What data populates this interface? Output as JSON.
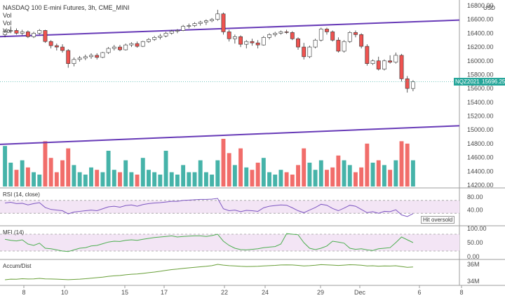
{
  "header": {
    "title": "NASDAQ 100 E-mini Futures, 3h, CME_MINI",
    "vol_lines": [
      "Vol",
      "Vol",
      "Vol"
    ]
  },
  "price_axis": {
    "currency": "USD",
    "ticks": [
      "16800.00",
      "16600.00",
      "16400.00",
      "16200.00",
      "16000.00",
      "15800.00",
      "15600.00",
      "15400.00",
      "15200.00",
      "15000.00",
      "14800.00",
      "14600.00",
      "14400.00",
      "14200.00"
    ]
  },
  "symbol_tag": "NQZ2021",
  "last_price": "15696.25",
  "rsi": {
    "label": "RSI (14, close)",
    "ticks": [
      "80.00",
      "40.00"
    ],
    "alert": "Hit oversold"
  },
  "mfi": {
    "label": "MFI (14)",
    "ticks": [
      "100.00",
      "50.00",
      "0.00"
    ]
  },
  "accum": {
    "label": "Accum/Dist",
    "ticks": [
      "36M",
      "34M"
    ]
  },
  "time_axis": [
    "8",
    "10",
    "15",
    "17",
    "22",
    "24",
    "29",
    "Dec",
    "6",
    "8"
  ],
  "colors": {
    "up": "#26a69a",
    "down": "#ef5350",
    "trendline": "#673ab7",
    "rsi_line": "#7e57c2",
    "mfi_line": "#4caf50",
    "accum_line": "#689f38",
    "band_fill": "#f3e5f5",
    "price_tag_bg": "#26a69a"
  },
  "chart_data": {
    "type": "candlestick",
    "title": "NASDAQ 100 E-mini Futures, 3h, CME_MINI",
    "y_range": [
      14200,
      16800
    ],
    "candles": [
      [
        16380,
        16460,
        16340,
        16430
      ],
      [
        16430,
        16500,
        16400,
        16440
      ],
      [
        16440,
        16470,
        16380,
        16400
      ],
      [
        16400,
        16450,
        16370,
        16420
      ],
      [
        16420,
        16440,
        16330,
        16350
      ],
      [
        16350,
        16420,
        16330,
        16400
      ],
      [
        16400,
        16460,
        16380,
        16440
      ],
      [
        16440,
        16450,
        16260,
        16280
      ],
      [
        16280,
        16300,
        16180,
        16220
      ],
      [
        16220,
        16250,
        16150,
        16200
      ],
      [
        16200,
        16240,
        16120,
        16150
      ],
      [
        16150,
        16170,
        15900,
        15960
      ],
      [
        15960,
        16050,
        15920,
        16020
      ],
      [
        16020,
        16070,
        15990,
        16040
      ],
      [
        16040,
        16090,
        16010,
        16060
      ],
      [
        16060,
        16110,
        16030,
        16080
      ],
      [
        16080,
        16110,
        16020,
        16050
      ],
      [
        16050,
        16130,
        16040,
        16120
      ],
      [
        16120,
        16200,
        16100,
        16180
      ],
      [
        16180,
        16230,
        16150,
        16200
      ],
      [
        16200,
        16230,
        16140,
        16160
      ],
      [
        16160,
        16250,
        16150,
        16230
      ],
      [
        16230,
        16270,
        16200,
        16250
      ],
      [
        16250,
        16280,
        16190,
        16210
      ],
      [
        16210,
        16290,
        16200,
        16280
      ],
      [
        16280,
        16330,
        16260,
        16310
      ],
      [
        16310,
        16360,
        16290,
        16340
      ],
      [
        16340,
        16390,
        16310,
        16360
      ],
      [
        16360,
        16420,
        16340,
        16400
      ],
      [
        16400,
        16450,
        16380,
        16430
      ],
      [
        16430,
        16460,
        16400,
        16440
      ],
      [
        16440,
        16520,
        16430,
        16500
      ],
      [
        16500,
        16540,
        16470,
        16510
      ],
      [
        16510,
        16560,
        16490,
        16540
      ],
      [
        16540,
        16580,
        16510,
        16560
      ],
      [
        16560,
        16600,
        16520,
        16580
      ],
      [
        16580,
        16620,
        16560,
        16600
      ],
      [
        16600,
        16740,
        16580,
        16680
      ],
      [
        16680,
        16700,
        16380,
        16420
      ],
      [
        16420,
        16450,
        16280,
        16320
      ],
      [
        16320,
        16380,
        16250,
        16350
      ],
      [
        16350,
        16370,
        16200,
        16240
      ],
      [
        16240,
        16300,
        16180,
        16280
      ],
      [
        16280,
        16320,
        16220,
        16260
      ],
      [
        16260,
        16300,
        16180,
        16230
      ],
      [
        16230,
        16360,
        16220,
        16340
      ],
      [
        16340,
        16400,
        16310,
        16380
      ],
      [
        16380,
        16420,
        16350,
        16400
      ],
      [
        16400,
        16440,
        16380,
        16420
      ],
      [
        16420,
        16450,
        16390,
        16410
      ],
      [
        16410,
        16430,
        16300,
        16320
      ],
      [
        16320,
        16340,
        16160,
        16200
      ],
      [
        16200,
        16260,
        16020,
        16060
      ],
      [
        16060,
        16220,
        16040,
        16200
      ],
      [
        16200,
        16320,
        16180,
        16300
      ],
      [
        16300,
        16480,
        16280,
        16460
      ],
      [
        16460,
        16480,
        16380,
        16420
      ],
      [
        16420,
        16440,
        16280,
        16300
      ],
      [
        16300,
        16340,
        16120,
        16140
      ],
      [
        16140,
        16300,
        16120,
        16280
      ],
      [
        16280,
        16430,
        16260,
        16410
      ],
      [
        16410,
        16440,
        16340,
        16380
      ],
      [
        16380,
        16400,
        16180,
        16210
      ],
      [
        16210,
        16240,
        15930,
        15960
      ],
      [
        15960,
        16020,
        15940,
        16000
      ],
      [
        16000,
        16060,
        15860,
        15880
      ],
      [
        15880,
        16020,
        15860,
        16000
      ],
      [
        16000,
        16080,
        15960,
        15980
      ],
      [
        15980,
        16120,
        15960,
        16080
      ],
      [
        16080,
        16100,
        15700,
        15740
      ],
      [
        15740,
        15780,
        15540,
        15600
      ],
      [
        15600,
        15720,
        15560,
        15696
      ]
    ],
    "volume_relative": [
      0.85,
      0.5,
      0.35,
      0.55,
      0.4,
      0.3,
      0.25,
      0.95,
      0.6,
      0.3,
      0.55,
      0.8,
      0.45,
      0.3,
      0.25,
      0.4,
      0.35,
      0.3,
      0.75,
      0.35,
      0.3,
      0.55,
      0.3,
      0.25,
      0.6,
      0.35,
      0.3,
      0.25,
      0.75,
      0.3,
      0.25,
      0.45,
      0.3,
      0.3,
      0.55,
      0.3,
      0.25,
      0.55,
      1.0,
      0.7,
      0.45,
      0.8,
      0.4,
      0.35,
      0.5,
      0.6,
      0.3,
      0.25,
      0.35,
      0.3,
      0.25,
      0.45,
      0.8,
      0.5,
      0.35,
      0.55,
      0.35,
      0.4,
      0.65,
      0.55,
      0.45,
      0.3,
      0.4,
      0.9,
      0.5,
      0.55,
      0.45,
      0.35,
      0.55,
      0.95,
      0.9,
      0.55
    ],
    "trendlines": [
      {
        "from": [
          0,
          16350
        ],
        "to": [
          72,
          16590
        ]
      },
      {
        "from": [
          0,
          14790
        ],
        "to": [
          72,
          15060
        ]
      }
    ],
    "rsi_range": [
      0,
      100
    ],
    "rsi_values": [
      62,
      64,
      60,
      61,
      56,
      60,
      63,
      48,
      42,
      40,
      38,
      28,
      34,
      36,
      38,
      40,
      38,
      44,
      50,
      52,
      49,
      54,
      56,
      52,
      57,
      60,
      62,
      63,
      65,
      67,
      67,
      70,
      71,
      72,
      73,
      73,
      74,
      76,
      44,
      38,
      40,
      35,
      39,
      38,
      36,
      47,
      52,
      54,
      56,
      55,
      47,
      38,
      32,
      40,
      48,
      58,
      55,
      45,
      38,
      46,
      55,
      52,
      42,
      32,
      35,
      30,
      36,
      35,
      41,
      25,
      20,
      29
    ],
    "mfi_range": [
      0,
      100
    ],
    "mfi_values": [
      62,
      58,
      56,
      60,
      45,
      40,
      48,
      30,
      28,
      24,
      20,
      18,
      24,
      30,
      32,
      38,
      40,
      46,
      52,
      55,
      54,
      58,
      60,
      58,
      62,
      65,
      68,
      70,
      72,
      74,
      70,
      72,
      73,
      74,
      74,
      72,
      75,
      80,
      55,
      40,
      30,
      25,
      24,
      26,
      28,
      32,
      34,
      36,
      45,
      82,
      80,
      78,
      50,
      30,
      25,
      30,
      38,
      55,
      52,
      48,
      30,
      26,
      28,
      24,
      22,
      28,
      30,
      32,
      50,
      70,
      60,
      50
    ],
    "accum_values": [
      0,
      0.5,
      0.4,
      0.8,
      0.6,
      0.7,
      1.1,
      0.7,
      0.6,
      0.5,
      0.3,
      0.1,
      0.3,
      0.5,
      0.8,
      1.2,
      1.6,
      2.0,
      2.6,
      3.0,
      3.3,
      3.8,
      4.2,
      4.4,
      4.9,
      5.4,
      5.9,
      6.5,
      7.2,
      7.8,
      8.2,
      8.7,
      9.1,
      9.5,
      9.9,
      10.3,
      10.8,
      11.8,
      11.2,
      10.8,
      10.6,
      10.3,
      10.1,
      10.2,
      10.3,
      10.6,
      10.8,
      11.0,
      11.3,
      11.4,
      11.3,
      11.0,
      10.6,
      10.8,
      11.1,
      11.6,
      11.4,
      11.2,
      10.9,
      11.2,
      11.5,
      11.4,
      11.1,
      10.6,
      10.7,
      10.4,
      10.6,
      10.5,
      10.7,
      10.1,
      9.5,
      9.8
    ]
  }
}
